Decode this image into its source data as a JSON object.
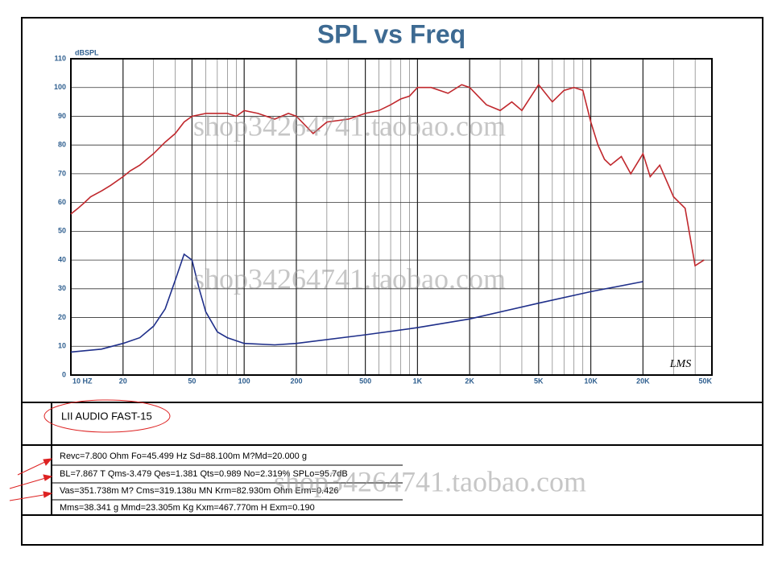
{
  "chart_data": {
    "type": "line",
    "title": "SPL vs Freq",
    "ylabel": "dBSPL",
    "xscale": "log",
    "xlim": [
      10,
      50000
    ],
    "ylim": [
      0,
      110
    ],
    "xticks": [
      {
        "value": 10,
        "label": "10 HZ"
      },
      20,
      50,
      100,
      200,
      500,
      {
        "value": 1000,
        "label": "1K"
      },
      {
        "value": 2000,
        "label": "2K"
      },
      {
        "value": 5000,
        "label": "5K"
      },
      {
        "value": 10000,
        "label": "10K"
      },
      {
        "value": 20000,
        "label": "20K"
      },
      {
        "value": 50000,
        "label": "50K"
      }
    ],
    "yticks": [
      0,
      10,
      20,
      30,
      40,
      50,
      60,
      70,
      80,
      90,
      100,
      110
    ],
    "grid": true,
    "minor_grid": true,
    "series": [
      {
        "color": "#c0282d",
        "x": [
          10,
          11,
          12,
          13,
          15,
          17,
          20,
          22,
          25,
          30,
          35,
          40,
          45,
          50,
          60,
          70,
          80,
          90,
          100,
          120,
          150,
          180,
          200,
          250,
          300,
          400,
          500,
          600,
          700,
          800,
          900,
          1000,
          1200,
          1500,
          1800,
          2000,
          2500,
          3000,
          3500,
          4000,
          5000,
          6000,
          7000,
          8000,
          9000,
          10000,
          11000,
          12000,
          13000,
          15000,
          17000,
          20000,
          22000,
          25000,
          30000,
          35000,
          40000,
          45000
        ],
        "values": [
          56,
          58,
          60,
          62,
          64,
          66,
          69,
          71,
          73,
          77,
          81,
          84,
          88,
          90,
          91,
          91,
          91,
          90,
          92,
          91,
          89,
          91,
          90,
          84,
          88,
          89,
          91,
          92,
          94,
          96,
          97,
          100,
          100,
          98,
          101,
          100,
          94,
          92,
          95,
          92,
          101,
          95,
          99,
          100,
          99,
          88,
          80,
          75,
          73,
          76,
          70,
          77,
          69,
          73,
          62,
          58,
          38,
          40
        ]
      },
      {
        "color": "#1f2f8a",
        "x": [
          10,
          15,
          20,
          25,
          30,
          35,
          40,
          45,
          50,
          55,
          60,
          70,
          80,
          100,
          150,
          200,
          500,
          1000,
          2000,
          5000,
          10000,
          20000
        ],
        "values": [
          8,
          9,
          11,
          13,
          17,
          23,
          33,
          42,
          40,
          30,
          22,
          15,
          13,
          11,
          10.5,
          11,
          14,
          16.5,
          19.5,
          25,
          29,
          32.5
        ]
      }
    ]
  },
  "logo": "LMS",
  "model": "LII AUDIO FAST-15",
  "parameters": [
    "Revc=7.800 Ohm  Fo=45.499 Hz  Sd=88.100m M?Md=20.000 g",
    "BL=7.867 T Qms-3.479  Qes=1.381  Qts=0.989  No=2.319%  SPLo=95.7dB",
    "Vas=351.738m M? Cms=319.138u MN Krm=82.930m Ohm Erm=0.426",
    "Mms=38.341 g  Mmd=23.305m Kg  Kxm=467.770m H  Exm=0.190"
  ],
  "watermark": "shop34264741.taobao.com"
}
